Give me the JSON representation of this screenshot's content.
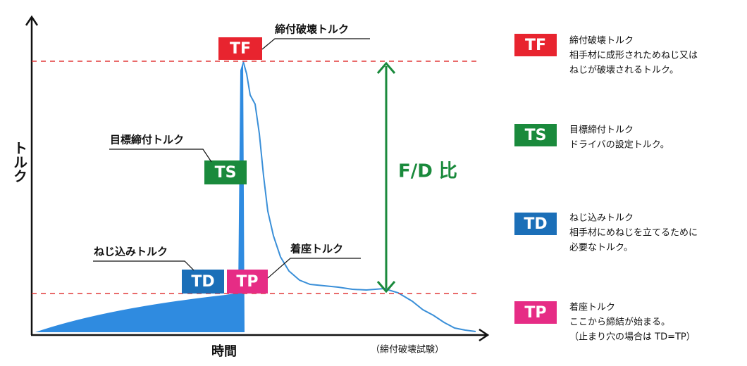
{
  "axes": {
    "y_label": "トルク",
    "x_label": "時間",
    "x_note": "（締付破壊試験）"
  },
  "callouts": [
    {
      "badge": "TF",
      "label": "締付破壊トルク"
    },
    {
      "badge": "TS",
      "label": "目標締付トルク"
    },
    {
      "badge": "TD",
      "label": "ねじ込みトルク"
    },
    {
      "badge": "TP",
      "label": "着座トルク"
    }
  ],
  "ratio_label": "F/D 比",
  "legend": [
    {
      "badge": "TF",
      "lines": [
        "締付破壊トルク",
        "相手材に成形されためねじ又は",
        "ねじが破壊されるトルク。"
      ]
    },
    {
      "badge": "TS",
      "lines": [
        "目標締付トルク",
        "ドライバの設定トルク。"
      ]
    },
    {
      "badge": "TD",
      "lines": [
        "ねじ込みトルク",
        "相手材にめねじを立てるために",
        "必要なトルク。"
      ]
    },
    {
      "badge": "TP",
      "lines": [
        "着座トルク",
        "ここから締結が始まる。",
        "（止まり穴の場合は TD=TP）"
      ]
    }
  ]
}
